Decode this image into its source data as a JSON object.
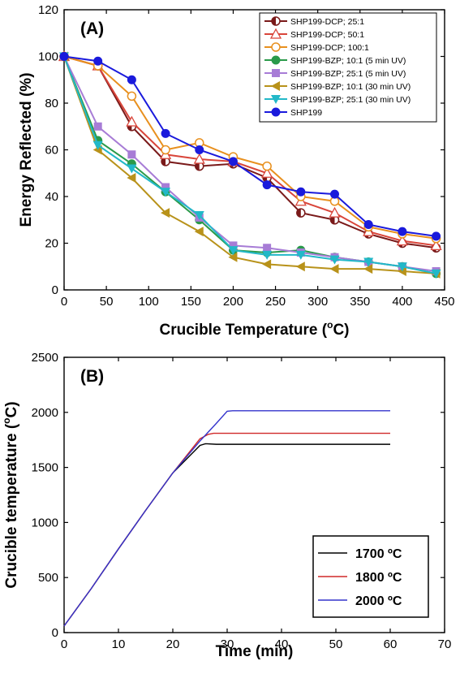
{
  "chart_data": [
    {
      "type": "line",
      "panel_label": "(A)",
      "xlabel": "Crucible Temperature (",
      "xlabel_sup": "o",
      "xlabel_end": "C)",
      "ylabel": "Energy Reflected (%)",
      "xlim": [
        0,
        450
      ],
      "ylim": [
        0,
        120
      ],
      "xticks": [
        0,
        50,
        100,
        150,
        200,
        250,
        300,
        350,
        400,
        450
      ],
      "yticks": [
        0,
        20,
        40,
        60,
        80,
        100,
        120
      ],
      "legend_position": "top-right",
      "x": [
        0,
        40,
        80,
        120,
        160,
        200,
        240,
        280,
        320,
        360,
        400,
        440
      ],
      "series": [
        {
          "name": "SHP199-DCP; 25:1",
          "color": "#7a1a1a",
          "marker": "circle-half",
          "values": [
            100,
            96,
            70,
            55,
            53,
            54,
            48,
            33,
            30,
            24,
            20,
            18
          ]
        },
        {
          "name": "SHP199-DCP; 50:1",
          "color": "#d9453a",
          "marker": "triangle-up",
          "values": [
            100,
            96,
            72,
            58,
            56,
            55,
            50,
            38,
            33,
            25,
            21,
            19
          ]
        },
        {
          "name": "SHP199-DCP; 100:1",
          "color": "#e8901e",
          "marker": "circle-open",
          "values": [
            100,
            96,
            83,
            60,
            63,
            57,
            53,
            40,
            38,
            27,
            24,
            22
          ]
        },
        {
          "name": "SHP199-BZP; 10:1 (5 min UV)",
          "color": "#2a9a4a",
          "marker": "circle",
          "values": [
            100,
            64,
            54,
            42,
            30,
            17,
            16,
            17,
            14,
            12,
            10,
            7
          ]
        },
        {
          "name": "SHP199-BZP; 25:1 (5 min UV)",
          "color": "#a77cd6",
          "marker": "square",
          "values": [
            100,
            70,
            58,
            44,
            31,
            19,
            18,
            16,
            14,
            12,
            10,
            8
          ]
        },
        {
          "name": "SHP199-BZP; 10:1 (30 min UV)",
          "color": "#b8921a",
          "marker": "triangle-left",
          "values": [
            100,
            60,
            48,
            33,
            25,
            14,
            11,
            10,
            9,
            9,
            8,
            7
          ]
        },
        {
          "name": "SHP199-BZP; 25:1 (30 min UV)",
          "color": "#22b8c8",
          "marker": "triangle-down",
          "values": [
            100,
            62,
            52,
            42,
            32,
            17,
            15,
            15,
            13,
            12,
            10,
            7
          ]
        },
        {
          "name": "SHP199",
          "color": "#1a1adc",
          "marker": "circle",
          "values": [
            100,
            98,
            90,
            67,
            60,
            55,
            45,
            42,
            41,
            28,
            25,
            23
          ]
        }
      ]
    },
    {
      "type": "line",
      "panel_label": "(B)",
      "xlabel": "Time (min)",
      "ylabel": "Crucible temperature (",
      "ylabel_sup": "o",
      "ylabel_end": "C)",
      "xlim": [
        0,
        70
      ],
      "ylim": [
        0,
        2500
      ],
      "xticks": [
        0,
        10,
        20,
        30,
        40,
        50,
        60,
        70
      ],
      "yticks": [
        0,
        500,
        1000,
        1500,
        2000,
        2500
      ],
      "legend_position": "bottom-right",
      "series": [
        {
          "name": "1700 ºC",
          "color": "#000000",
          "x": [
            0,
            5,
            10,
            15,
            20,
            25,
            26,
            28,
            60
          ],
          "values": [
            60,
            400,
            760,
            1110,
            1450,
            1700,
            1715,
            1710,
            1710
          ]
        },
        {
          "name": "1800 ºC",
          "color": "#d02828",
          "x": [
            0,
            5,
            10,
            15,
            20,
            25,
            26.5,
            27.5,
            60
          ],
          "values": [
            60,
            400,
            760,
            1110,
            1450,
            1760,
            1800,
            1810,
            1810
          ]
        },
        {
          "name": "2000 ºC",
          "color": "#3333cc",
          "x": [
            0,
            5,
            10,
            15,
            20,
            25,
            28,
            30,
            31,
            60
          ],
          "values": [
            60,
            400,
            760,
            1110,
            1450,
            1740,
            1900,
            2010,
            2015,
            2015
          ]
        }
      ]
    }
  ]
}
